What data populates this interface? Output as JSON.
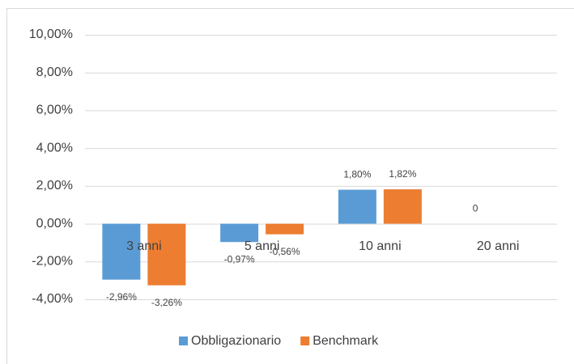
{
  "chart_data": {
    "type": "bar",
    "categories": [
      "3 anni",
      "5 anni",
      "10 anni",
      "20 anni"
    ],
    "series": [
      {
        "name": "Obbligazionario",
        "color": "#5b9bd5",
        "values": [
          -2.96,
          -0.97,
          1.8,
          0
        ],
        "value_labels": [
          "-2,96%",
          "-0,97%",
          "1,80%",
          "0"
        ]
      },
      {
        "name": "Benchmark",
        "color": "#ed7d31",
        "values": [
          -3.26,
          -0.56,
          1.82,
          null
        ],
        "value_labels": [
          "-3,26%",
          "-0,56%",
          "1,82%",
          null
        ]
      }
    ],
    "ylim": [
      -4,
      10
    ],
    "yticks": [
      {
        "value": -4,
        "label": "-4,00%"
      },
      {
        "value": -2,
        "label": "-2,00%"
      },
      {
        "value": 0,
        "label": "0,00%"
      },
      {
        "value": 2,
        "label": "2,00%"
      },
      {
        "value": 4,
        "label": "4,00%"
      },
      {
        "value": 6,
        "label": "6,00%"
      },
      {
        "value": 8,
        "label": "8,00%"
      },
      {
        "value": 10,
        "label": "10,00%"
      }
    ],
    "grid": true,
    "legend": "bottom"
  }
}
